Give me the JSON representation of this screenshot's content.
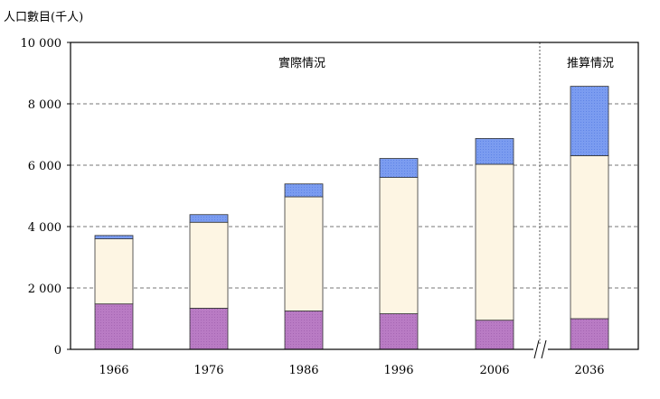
{
  "chart_data": {
    "type": "bar",
    "stacked": true,
    "ylabel": "人口數目(千人)",
    "ylim": [
      0,
      10000
    ],
    "yticks": [
      0,
      2000,
      4000,
      6000,
      8000,
      10000
    ],
    "ytick_labels": [
      "0",
      "2 000",
      "4 000",
      "6 000",
      "8 000",
      "10 000"
    ],
    "categories": [
      "1966",
      "1976",
      "1986",
      "1996",
      "2006",
      "2036"
    ],
    "series": [
      {
        "values": [
          1480,
          1340,
          1250,
          1160,
          950,
          1000
        ],
        "color": "#b97bc4"
      },
      {
        "values": [
          2120,
          2800,
          3720,
          4440,
          5080,
          5310
        ],
        "color": "#fdf5e3"
      },
      {
        "values": [
          110,
          250,
          420,
          620,
          840,
          2260
        ],
        "color": "#7b9cf0"
      }
    ],
    "grid": {
      "horizontal": true,
      "style": "dashed"
    },
    "region_labels": [
      "實際情況",
      "推算情況"
    ],
    "axis_break_between": [
      "2006",
      "2036"
    ]
  }
}
